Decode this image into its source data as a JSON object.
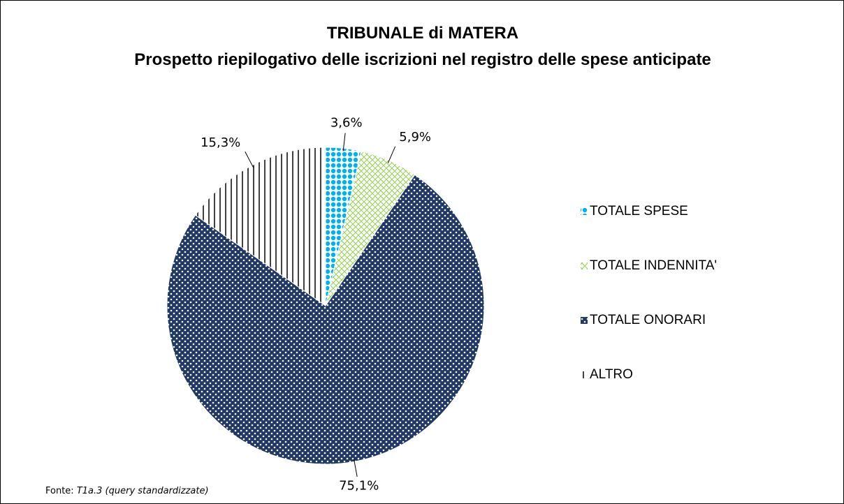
{
  "chart_data": {
    "type": "pie",
    "title": "TRIBUNALE di MATERA",
    "subtitle": "Prospetto riepilogativo delle iscrizioni nel registro delle spese anticipate",
    "categories": [
      "TOTALE SPESE",
      "TOTALE INDENNITA'",
      "TOTALE ONORARI",
      "ALTRO"
    ],
    "values": [
      3.6,
      5.9,
      75.1,
      15.3
    ],
    "value_labels": [
      "3,6%",
      "5,9%",
      "75,1%",
      "15,3%"
    ],
    "colors": [
      "#00b0f0",
      "#92d050",
      "#1f3864",
      "#000000"
    ],
    "patterns": [
      "dots",
      "crosshatch",
      "checker",
      "vertical"
    ],
    "legend": "right",
    "source": {
      "label": "Fonte:",
      "text": "T1a.3 (query standardizzate)"
    }
  }
}
